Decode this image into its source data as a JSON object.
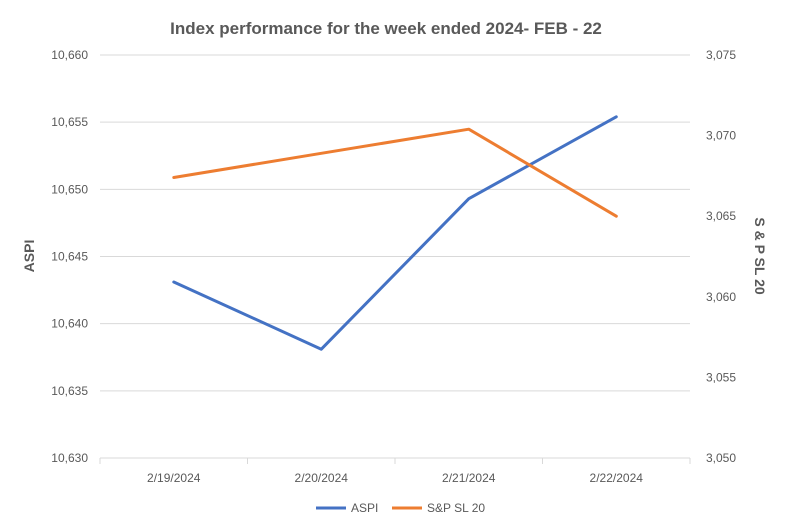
{
  "chart_data": {
    "type": "line",
    "title": "Index performance for the week ended 2024- FEB - 22",
    "categories": [
      "2/19/2024",
      "2/20/2024",
      "2/21/2024",
      "2/22/2024"
    ],
    "y_left": {
      "label": "ASPI",
      "ylim": [
        10630,
        10660
      ],
      "ticks": [
        "10,630",
        "10,635",
        "10,640",
        "10,645",
        "10,650",
        "10,655",
        "10,660"
      ],
      "tick_values": [
        10630,
        10635,
        10640,
        10645,
        10650,
        10655,
        10660
      ]
    },
    "y_right": {
      "label": "S & P SL 20",
      "ylim": [
        3050,
        3075
      ],
      "ticks": [
        "3,050",
        "3,055",
        "3,060",
        "3,065",
        "3,070",
        "3,075"
      ],
      "tick_values": [
        3050,
        3055,
        3060,
        3065,
        3070,
        3075
      ]
    },
    "series": [
      {
        "name": "ASPI",
        "axis": "left",
        "color": "#4472c4",
        "values": [
          10643.1,
          10638.1,
          10649.3,
          10655.4
        ]
      },
      {
        "name": "S&P SL 20",
        "axis": "right",
        "color": "#ed7d31",
        "values": [
          3067.4,
          3068.9,
          3070.4,
          3065.0
        ]
      }
    ],
    "grid": true,
    "legend": "bottom"
  }
}
